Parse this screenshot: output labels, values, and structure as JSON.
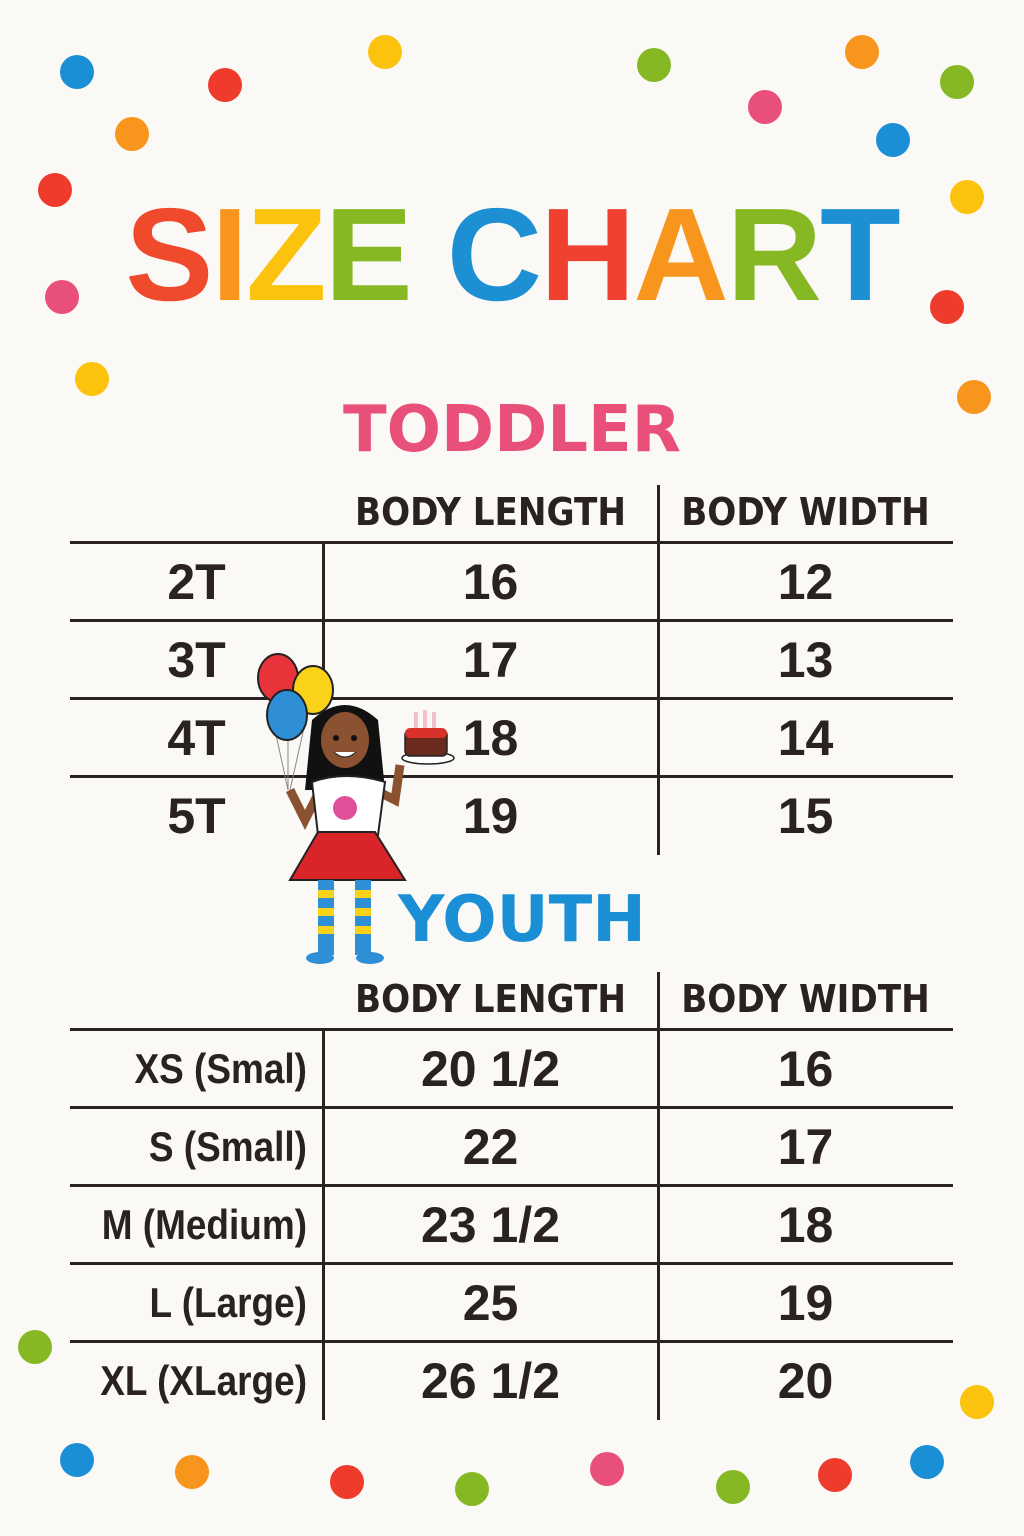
{
  "title": {
    "letters": [
      "S",
      "I",
      "Z",
      "E",
      " ",
      "C",
      "H",
      "A",
      "R",
      "T"
    ],
    "colors": [
      "#f04a2c",
      "#f7951d",
      "#fbc20e",
      "#86b824",
      "#ffffff",
      "#1d8fd3",
      "#ef4030",
      "#f7951d",
      "#86b824",
      "#1d8fd3"
    ]
  },
  "colors": {
    "toddler": "#e8507a",
    "youth": "#1a8fd6",
    "text": "#2a2220",
    "background": "#fbf9f6",
    "confetti": [
      "#1a8fd6",
      "#fbc20e",
      "#f7951d",
      "#86b824",
      "#e8507a",
      "#ef3b2c"
    ]
  },
  "toddler": {
    "heading": "TODDLER",
    "columns": [
      "BODY LENGTH",
      "BODY WIDTH"
    ],
    "rows": [
      {
        "size": "2T",
        "length": "16",
        "width": "12"
      },
      {
        "size": "3T",
        "length": "17",
        "width": "13"
      },
      {
        "size": "4T",
        "length": "18",
        "width": "14"
      },
      {
        "size": "5T",
        "length": "19",
        "width": "15"
      }
    ]
  },
  "youth": {
    "heading": "YOUTH",
    "columns": [
      "BODY LENGTH",
      "BODY WIDTH"
    ],
    "rows": [
      {
        "size": "XS (Smal)",
        "length": "20 1/2",
        "width": "16"
      },
      {
        "size": "S (Small)",
        "length": "22",
        "width": "17"
      },
      {
        "size": "M (Medium)",
        "length": "23 1/2",
        "width": "18"
      },
      {
        "size": "L (Large)",
        "length": "25",
        "width": "19"
      },
      {
        "size": "XL (XLarge)",
        "length": "26 1/2",
        "width": "20"
      }
    ]
  },
  "mascot": {
    "shirt_logo": "Confetti"
  }
}
